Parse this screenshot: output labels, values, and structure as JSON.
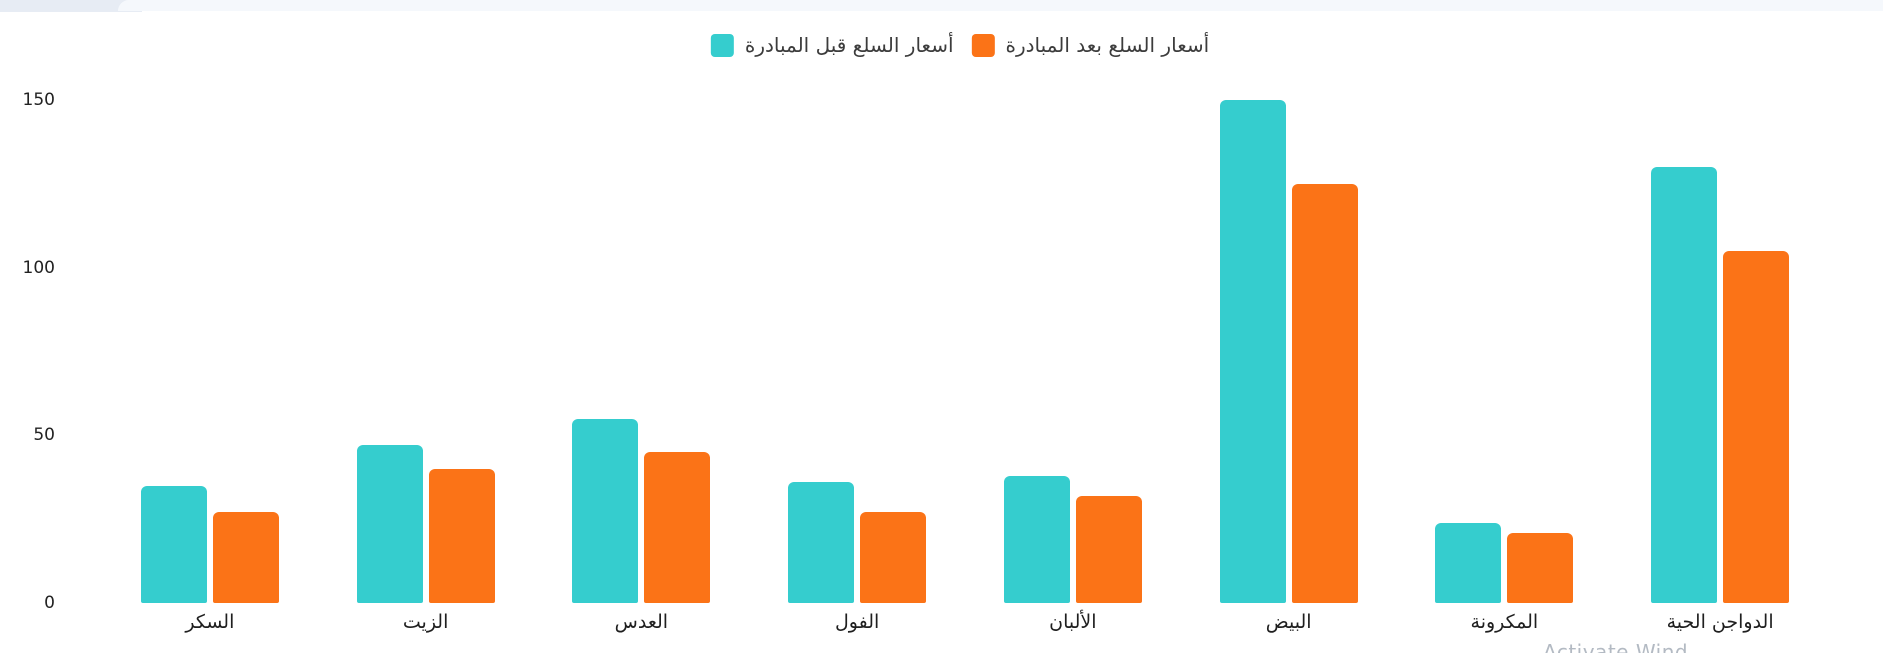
{
  "page": {
    "watermark": "Activate Wind",
    "background_color": "#ffffff",
    "top_strip_dark_color": "#e7ecf4",
    "top_strip_light_color": "#f5f8fc"
  },
  "legend": {
    "items": [
      {
        "label": "أسعار السلع قبل المبادرة",
        "color": "#35CDCE"
      },
      {
        "label": "أسعار السلع بعد المبادرة",
        "color": "#FB7317"
      }
    ]
  },
  "chart_data": {
    "type": "bar",
    "title": "",
    "xlabel": "",
    "ylabel": "",
    "categories": [
      "السكر",
      "الزيت",
      "العدس",
      "الفول",
      "الألبان",
      "البيض",
      "المكرونة",
      "الدواجن الحية"
    ],
    "series": [
      {
        "name": "أسعار السلع قبل المبادرة",
        "color": "#35CDCE",
        "values": [
          35,
          47,
          55,
          36,
          38,
          150,
          24,
          130
        ]
      },
      {
        "name": "أسعار السلع بعد المبادرة",
        "color": "#FB7317",
        "values": [
          27,
          40,
          45,
          27,
          32,
          125,
          21,
          105
        ]
      }
    ],
    "y_ticks": [
      0,
      50,
      100,
      150
    ],
    "ylim": [
      0,
      150
    ],
    "grid": false,
    "legend_position": "top-center"
  }
}
